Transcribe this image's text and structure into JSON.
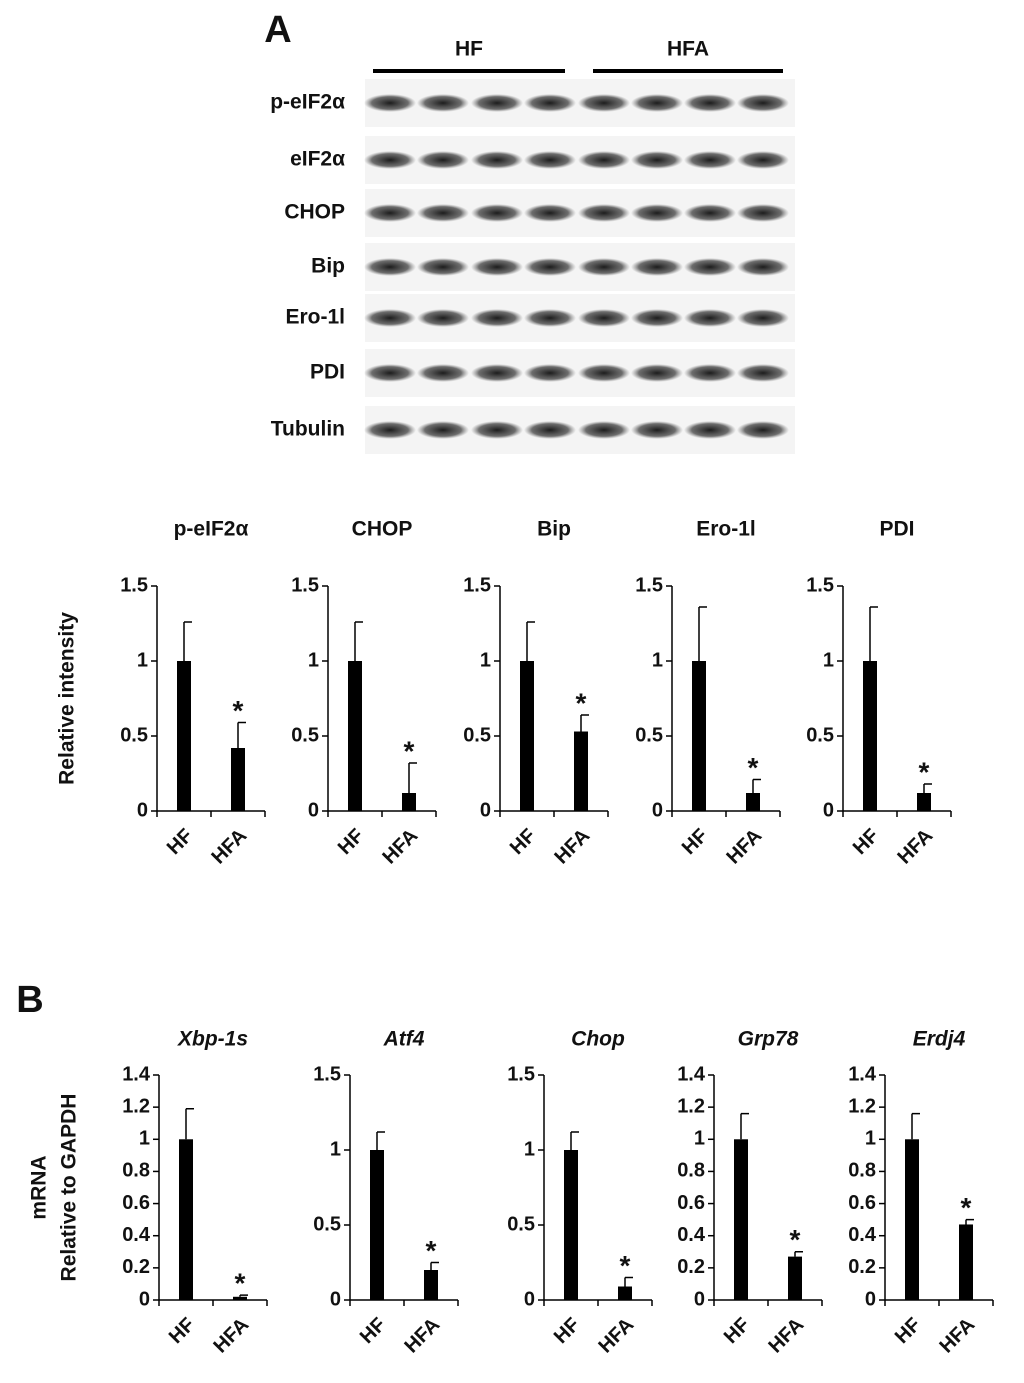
{
  "panel_labels": [
    "A",
    "B"
  ],
  "blot": {
    "groups": [
      "HF",
      "HFA"
    ],
    "rows": [
      "p-eIF2α",
      "eIF2α",
      "CHOP",
      "Bip",
      "Ero-1l",
      "PDI",
      "Tubulin"
    ]
  },
  "chart_data": [
    {
      "type": "bar",
      "title": "p-eIF2α",
      "ylabel": [
        "Relative intensity"
      ],
      "categories": [
        "HF",
        "HFA"
      ],
      "values": [
        1,
        0.42
      ],
      "errors": [
        0.26,
        0.17
      ],
      "annotations": [
        null,
        "*"
      ],
      "color": "#000000",
      "ylim": [
        0,
        1.5
      ],
      "yticks": [
        0,
        0.5,
        1,
        1.5
      ]
    },
    {
      "type": "bar",
      "title": "CHOP",
      "categories": [
        "HF",
        "HFA"
      ],
      "values": [
        1,
        0.12
      ],
      "errors": [
        0.26,
        0.2
      ],
      "annotations": [
        null,
        "*"
      ],
      "color": "#000000",
      "ylim": [
        0,
        1.5
      ],
      "yticks": [
        0,
        0.5,
        1,
        1.5
      ]
    },
    {
      "type": "bar",
      "title": "Bip",
      "categories": [
        "HF",
        "HFA"
      ],
      "values": [
        1,
        0.53
      ],
      "errors": [
        0.26,
        0.11
      ],
      "annotations": [
        null,
        "*"
      ],
      "color": "#000000",
      "ylim": [
        0,
        1.5
      ],
      "yticks": [
        0,
        0.5,
        1,
        1.5
      ]
    },
    {
      "type": "bar",
      "title": "Ero-1l",
      "categories": [
        "HF",
        "HFA"
      ],
      "values": [
        1,
        0.12
      ],
      "errors": [
        0.36,
        0.09
      ],
      "annotations": [
        null,
        "*"
      ],
      "color": "#000000",
      "ylim": [
        0,
        1.5
      ],
      "yticks": [
        0,
        0.5,
        1,
        1.5
      ]
    },
    {
      "type": "bar",
      "title": "PDI",
      "categories": [
        "HF",
        "HFA"
      ],
      "values": [
        1,
        0.12
      ],
      "errors": [
        0.36,
        0.06
      ],
      "annotations": [
        null,
        "*"
      ],
      "color": "#000000",
      "ylim": [
        0,
        1.5
      ],
      "yticks": [
        0,
        0.5,
        1,
        1.5
      ]
    },
    {
      "type": "bar",
      "title": "Xbp-1s",
      "ylabel": [
        "mRNA",
        "Relative to GAPDH"
      ],
      "categories": [
        "HF",
        "HFA"
      ],
      "values": [
        1,
        0.02
      ],
      "errors": [
        0.19,
        0.01
      ],
      "annotations": [
        null,
        "*"
      ],
      "color": "#000000",
      "ylim": [
        0,
        1.4
      ],
      "yticks": [
        0,
        0.2,
        0.4,
        0.6,
        0.8,
        1,
        1.2,
        1.4
      ]
    },
    {
      "type": "bar",
      "title": "Atf4",
      "categories": [
        "HF",
        "HFA"
      ],
      "values": [
        1,
        0.2
      ],
      "errors": [
        0.12,
        0.05
      ],
      "annotations": [
        null,
        "*"
      ],
      "color": "#000000",
      "ylim": [
        0,
        1.5
      ],
      "yticks": [
        0,
        0.5,
        1,
        1.5
      ]
    },
    {
      "type": "bar",
      "title": "Chop",
      "categories": [
        "HF",
        "HFA"
      ],
      "values": [
        1,
        0.09
      ],
      "errors": [
        0.12,
        0.06
      ],
      "annotations": [
        null,
        "*"
      ],
      "color": "#000000",
      "ylim": [
        0,
        1.5
      ],
      "yticks": [
        0,
        0.5,
        1,
        1.5
      ]
    },
    {
      "type": "bar",
      "title": "Grp78",
      "categories": [
        "HF",
        "HFA"
      ],
      "values": [
        1,
        0.27
      ],
      "errors": [
        0.16,
        0.03
      ],
      "annotations": [
        null,
        "*"
      ],
      "color": "#000000",
      "ylim": [
        0,
        1.4
      ],
      "yticks": [
        0,
        0.2,
        0.4,
        0.6,
        0.8,
        1,
        1.2,
        1.4
      ]
    },
    {
      "type": "bar",
      "title": "Erdj4",
      "categories": [
        "HF",
        "HFA"
      ],
      "values": [
        1,
        0.47
      ],
      "errors": [
        0.16,
        0.03
      ],
      "annotations": [
        null,
        "*"
      ],
      "color": "#000000",
      "ylim": [
        0,
        1.4
      ],
      "yticks": [
        0,
        0.2,
        0.4,
        0.6,
        0.8,
        1,
        1.2,
        1.4
      ]
    }
  ]
}
